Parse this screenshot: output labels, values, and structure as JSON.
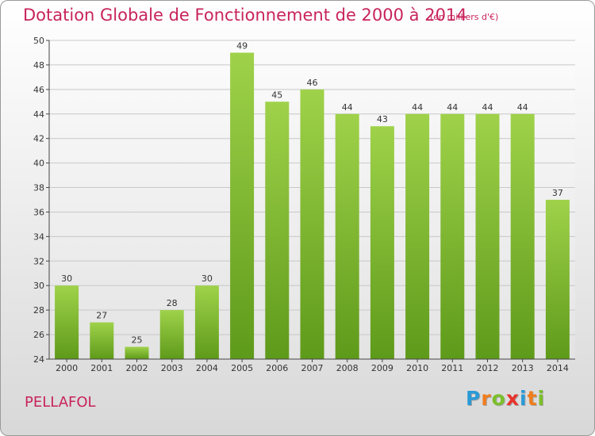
{
  "header": {
    "title": "Dotation Globale de Fonctionnement de 2000 à 2014",
    "subtitle": "(en milliers d'€)"
  },
  "footer": {
    "commune": "PELLAFOL",
    "logo_letters": [
      "P",
      "r",
      "o",
      "x",
      "i",
      "t",
      "i"
    ],
    "logo_colors": [
      "#2a9ad6",
      "#f07d1c",
      "#7bbf2a",
      "#e8322b",
      "#2a9ad6",
      "#f07d1c",
      "#7bbf2a"
    ]
  },
  "chart_data": {
    "type": "bar",
    "title": "Dotation Globale de Fonctionnement de 2000 à 2014",
    "subtitle": "(en milliers d'€)",
    "categories": [
      "2000",
      "2001",
      "2002",
      "2003",
      "2004",
      "2005",
      "2006",
      "2007",
      "2008",
      "2009",
      "2010",
      "2011",
      "2012",
      "2013",
      "2014"
    ],
    "values": [
      30,
      27,
      25,
      28,
      30,
      49,
      45,
      46,
      44,
      43,
      44,
      44,
      44,
      44,
      37
    ],
    "ylim": [
      24,
      50
    ],
    "yticks": [
      24,
      26,
      28,
      30,
      32,
      34,
      36,
      38,
      40,
      42,
      44,
      46,
      48,
      50
    ],
    "grid": true,
    "bar_color_top": "#9fd24a",
    "bar_color_bottom": "#5e9a1a",
    "text_color": "#c8245a"
  }
}
